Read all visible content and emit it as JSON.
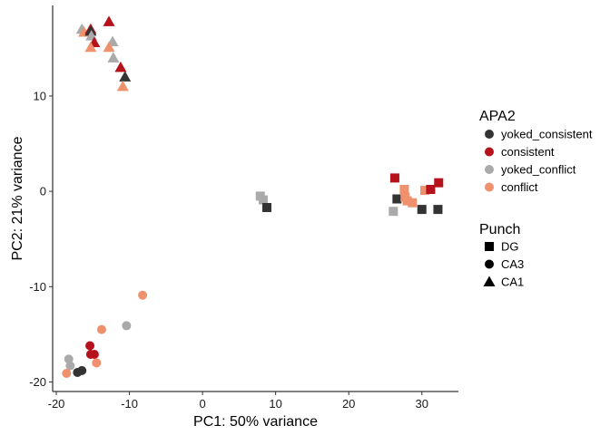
{
  "chart_data": {
    "type": "scatter",
    "title": "",
    "xlabel": "PC1: 50% variance",
    "ylabel": "PC2: 21% variance",
    "xlim": [
      -20.5,
      35
    ],
    "ylim": [
      -21,
      19.5
    ],
    "xticks": [
      -20,
      -10,
      0,
      10,
      20,
      30
    ],
    "yticks": [
      -20,
      -10,
      0,
      10
    ],
    "grid": false,
    "color_legend": {
      "title": "APA2",
      "entries": [
        {
          "name": "yoked_consistent",
          "color": "#333333"
        },
        {
          "name": "consistent",
          "color": "#b5121b"
        },
        {
          "name": "yoked_conflict",
          "color": "#aaaaaa"
        },
        {
          "name": "conflict",
          "color": "#f0916e"
        }
      ]
    },
    "shape_legend": {
      "title": "Punch",
      "entries": [
        {
          "name": "DG",
          "shape": "square"
        },
        {
          "name": "CA3",
          "shape": "circle"
        },
        {
          "name": "CA1",
          "shape": "triangle"
        }
      ]
    },
    "points": [
      {
        "x": -16.5,
        "y": 17.0,
        "group": "yoked_conflict",
        "punch": "CA1"
      },
      {
        "x": -16.2,
        "y": 16.7,
        "group": "conflict",
        "punch": "CA1"
      },
      {
        "x": -15.3,
        "y": 17.0,
        "group": "consistent",
        "punch": "CA1"
      },
      {
        "x": -15.3,
        "y": 16.8,
        "group": "yoked_consistent",
        "punch": "CA1"
      },
      {
        "x": -15.2,
        "y": 16.3,
        "group": "yoked_conflict",
        "punch": "CA1"
      },
      {
        "x": -14.8,
        "y": 15.6,
        "group": "consistent",
        "punch": "CA1"
      },
      {
        "x": -15.3,
        "y": 15.1,
        "group": "conflict",
        "punch": "CA1"
      },
      {
        "x": -12.8,
        "y": 17.8,
        "group": "consistent",
        "punch": "CA1"
      },
      {
        "x": -12.3,
        "y": 15.7,
        "group": "yoked_conflict",
        "punch": "CA1"
      },
      {
        "x": -12.8,
        "y": 15.1,
        "group": "conflict",
        "punch": "CA1"
      },
      {
        "x": -12.2,
        "y": 14.0,
        "group": "yoked_conflict",
        "punch": "CA1"
      },
      {
        "x": -11.2,
        "y": 13.0,
        "group": "consistent",
        "punch": "CA1"
      },
      {
        "x": -10.6,
        "y": 12.0,
        "group": "yoked_consistent",
        "punch": "CA1"
      },
      {
        "x": -10.9,
        "y": 11.0,
        "group": "conflict",
        "punch": "CA1"
      },
      {
        "x": 7.9,
        "y": -0.5,
        "group": "yoked_conflict",
        "punch": "DG"
      },
      {
        "x": 8.3,
        "y": -0.9,
        "group": "yoked_conflict",
        "punch": "DG"
      },
      {
        "x": 8.8,
        "y": -1.7,
        "group": "yoked_consistent",
        "punch": "DG"
      },
      {
        "x": 26.3,
        "y": 1.4,
        "group": "consistent",
        "punch": "DG"
      },
      {
        "x": 26.6,
        "y": -0.8,
        "group": "yoked_consistent",
        "punch": "DG"
      },
      {
        "x": 27.6,
        "y": 0.2,
        "group": "conflict",
        "punch": "DG"
      },
      {
        "x": 27.7,
        "y": -0.6,
        "group": "conflict",
        "punch": "DG"
      },
      {
        "x": 28.0,
        "y": -1.0,
        "group": "conflict",
        "punch": "DG"
      },
      {
        "x": 28.7,
        "y": -1.2,
        "group": "conflict",
        "punch": "DG"
      },
      {
        "x": 26.1,
        "y": -2.1,
        "group": "yoked_conflict",
        "punch": "DG"
      },
      {
        "x": 30.0,
        "y": -1.9,
        "group": "yoked_consistent",
        "punch": "DG"
      },
      {
        "x": 30.4,
        "y": 0.1,
        "group": "conflict",
        "punch": "DG"
      },
      {
        "x": 31.2,
        "y": 0.2,
        "group": "consistent",
        "punch": "DG"
      },
      {
        "x": 32.3,
        "y": 0.9,
        "group": "consistent",
        "punch": "DG"
      },
      {
        "x": 32.2,
        "y": -1.9,
        "group": "yoked_consistent",
        "punch": "DG"
      },
      {
        "x": -8.2,
        "y": -10.9,
        "group": "conflict",
        "punch": "CA3"
      },
      {
        "x": -10.4,
        "y": -14.1,
        "group": "yoked_conflict",
        "punch": "CA3"
      },
      {
        "x": -13.8,
        "y": -14.5,
        "group": "conflict",
        "punch": "CA3"
      },
      {
        "x": -15.4,
        "y": -16.2,
        "group": "consistent",
        "punch": "CA3"
      },
      {
        "x": -15.3,
        "y": -17.1,
        "group": "consistent",
        "punch": "CA3"
      },
      {
        "x": -14.8,
        "y": -17.1,
        "group": "consistent",
        "punch": "CA3"
      },
      {
        "x": -14.5,
        "y": -18.0,
        "group": "conflict",
        "punch": "CA3"
      },
      {
        "x": -18.3,
        "y": -17.6,
        "group": "yoked_conflict",
        "punch": "CA3"
      },
      {
        "x": -18.1,
        "y": -18.3,
        "group": "yoked_conflict",
        "punch": "CA3"
      },
      {
        "x": -16.5,
        "y": -18.8,
        "group": "yoked_consistent",
        "punch": "CA3"
      },
      {
        "x": -17.1,
        "y": -19.0,
        "group": "yoked_consistent",
        "punch": "CA3"
      },
      {
        "x": -18.6,
        "y": -19.1,
        "group": "conflict",
        "punch": "CA3"
      }
    ]
  }
}
